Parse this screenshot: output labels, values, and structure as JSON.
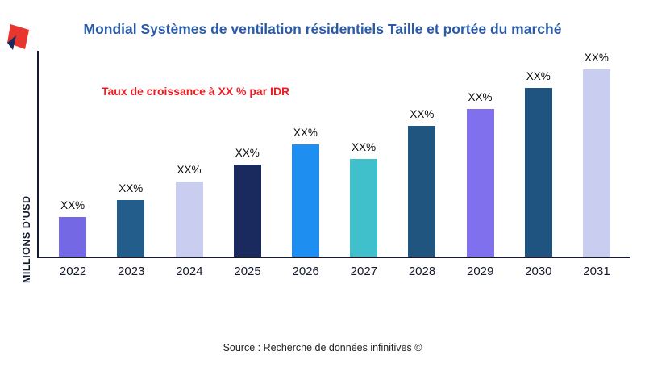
{
  "title": "Mondial Systèmes de ventilation résidentiels Taille et portée du marché",
  "annotation": "Taux de croissance à XX % par IDR",
  "source": "Source : Recherche de données infinitives ©",
  "chart_data": {
    "type": "bar",
    "title": "Mondial Systèmes de ventilation résidentiels Taille et portée du marché",
    "xlabel": "",
    "ylabel": "MILLIONS D'USD",
    "categories": [
      "2022",
      "2023",
      "2024",
      "2025",
      "2026",
      "2027",
      "2028",
      "2029",
      "2030",
      "2031"
    ],
    "values": [
      21,
      30,
      40,
      49,
      60,
      52,
      70,
      79,
      90,
      100
    ],
    "value_labels": [
      "XX%",
      "XX%",
      "XX%",
      "XX%",
      "XX%",
      "XX%",
      "XX%",
      "XX%",
      "XX%",
      "XX%"
    ],
    "bar_colors": [
      "#7468e4",
      "#235d8c",
      "#c9cdf0",
      "#1b2a5e",
      "#1e8ef0",
      "#3fc0cb",
      "#20557f",
      "#8070ee",
      "#1f5380",
      "#c9cdf0"
    ],
    "ylim": [
      0,
      110
    ],
    "grid": false,
    "legend": "none",
    "annotations": [
      "Taux de croissance à XX % par IDR"
    ]
  },
  "colors": {
    "title": "#2a5ba7",
    "annotation": "#ec1c24",
    "axis": "#14192e",
    "logo_red": "#e8352e",
    "logo_navy": "#1b2a5e"
  }
}
